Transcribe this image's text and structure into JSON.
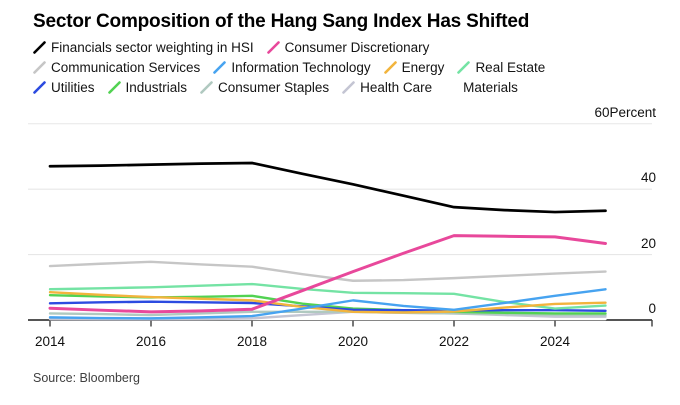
{
  "title": "Sector Composition of the Hang Sang Index Has Shifted",
  "source": "Source: Bloomberg",
  "legend": {
    "rows": [
      [
        0,
        1
      ],
      [
        2,
        3,
        4,
        5
      ],
      [
        6,
        7,
        8,
        9,
        10
      ]
    ]
  },
  "chart_data": {
    "type": "line",
    "title": "Sector Composition of the Hang Sang Index Has Shifted",
    "xlabel": "",
    "ylabel": "Percent",
    "y_axis_unit": "Percent",
    "x": [
      2014,
      2015,
      2016,
      2017,
      2018,
      2019,
      2020,
      2021,
      2022,
      2023,
      2024,
      2025
    ],
    "x_tick_labels": [
      "2014",
      "2016",
      "2018",
      "2020",
      "2022",
      "2024"
    ],
    "x_tick_years": [
      2014,
      2016,
      2018,
      2020,
      2022,
      2024
    ],
    "y_ticks": [
      0,
      20,
      40,
      60
    ],
    "ylim": [
      -1,
      62
    ],
    "grid": "horizontal-light",
    "legend_position": "top",
    "colors": {
      "zero_axis": "#3d3d3d",
      "gridline": "#e7e7e7",
      "text": "#111111"
    },
    "series": [
      {
        "key": "financials",
        "name": "Financials sector weighting in HSI",
        "color": "#000000",
        "values": [
          47.0,
          47.2,
          47.5,
          47.8,
          48.0,
          44.7,
          41.5,
          38.0,
          34.5,
          33.6,
          33.0,
          33.4
        ]
      },
      {
        "key": "consumer_discretionary",
        "name": "Consumer Discretionary",
        "color": "#e8489b",
        "values": [
          3.6,
          3.0,
          2.5,
          2.8,
          3.3,
          9.0,
          14.8,
          20.4,
          25.8,
          25.6,
          25.4,
          23.4
        ]
      },
      {
        "key": "communication_services",
        "name": "Communication Services",
        "color": "#c6c6c6",
        "values": [
          16.5,
          17.2,
          17.8,
          17.0,
          16.3,
          14.0,
          12.0,
          12.2,
          12.8,
          13.5,
          14.2,
          14.8
        ]
      },
      {
        "key": "information_technology",
        "name": "Information Technology",
        "color": "#47a3f0",
        "values": [
          0.8,
          0.6,
          0.5,
          0.8,
          1.2,
          3.5,
          6.0,
          4.3,
          3.1,
          5.2,
          7.4,
          9.4
        ]
      },
      {
        "key": "energy",
        "name": "Energy",
        "color": "#f2b43d",
        "values": [
          8.5,
          7.7,
          7.0,
          6.5,
          6.0,
          4.0,
          2.5,
          2.3,
          2.6,
          3.8,
          4.9,
          5.3
        ]
      },
      {
        "key": "real_estate",
        "name": "Real Estate",
        "color": "#74e3a4",
        "values": [
          9.4,
          9.7,
          10.0,
          10.5,
          11.0,
          9.5,
          8.3,
          8.2,
          8.0,
          5.5,
          3.5,
          4.4
        ]
      },
      {
        "key": "utilities",
        "name": "Utilities",
        "color": "#2c4be0",
        "values": [
          5.1,
          5.4,
          5.6,
          5.4,
          5.2,
          4.2,
          3.1,
          3.0,
          2.9,
          3.0,
          3.0,
          2.8
        ]
      },
      {
        "key": "industrials",
        "name": "Industrials",
        "color": "#52d252",
        "values": [
          7.6,
          7.2,
          6.9,
          7.1,
          7.4,
          5.0,
          3.5,
          3.0,
          2.5,
          2.2,
          2.0,
          2.0
        ]
      },
      {
        "key": "consumer_staples",
        "name": "Consumer Staples",
        "color": "#b0c9c0",
        "values": [
          2.0,
          1.8,
          1.5,
          2.0,
          2.5,
          2.5,
          2.5,
          2.2,
          2.0,
          1.8,
          1.6,
          1.5
        ]
      },
      {
        "key": "health_care",
        "name": "Health Care",
        "color": "#c4c5d3",
        "values": [
          0.3,
          0.2,
          0.2,
          0.3,
          0.5,
          1.5,
          2.5,
          2.2,
          2.0,
          1.5,
          1.0,
          1.0
        ]
      },
      {
        "key": "materials",
        "name": "Materials",
        "color": "#ffffff",
        "values": [
          0.3,
          0.3,
          0.3,
          0.3,
          0.3,
          0.3,
          0.3,
          0.3,
          0.3,
          0.3,
          0.3,
          0.3
        ]
      }
    ]
  }
}
